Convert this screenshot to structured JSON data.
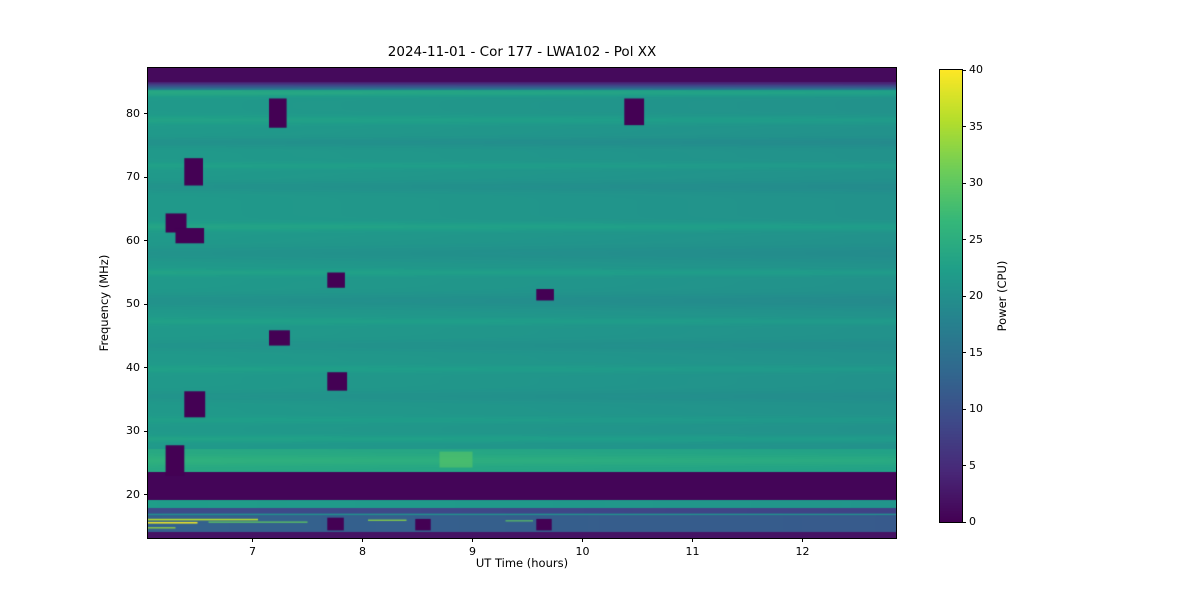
{
  "figure": {
    "background_color": "#ffffff",
    "text_color": "#000000"
  },
  "chart_data": {
    "type": "heatmap",
    "title": "2024-11-01 - Cor 177 - LWA102 - Pol XX",
    "xlabel": "UT Time (hours)",
    "ylabel": "Frequency (MHz)",
    "x_range": [
      6.05,
      12.85
    ],
    "y_range": [
      13.2,
      87.2
    ],
    "x_ticks": [
      7,
      8,
      9,
      10,
      11,
      12
    ],
    "y_ticks": [
      20,
      30,
      40,
      50,
      60,
      70,
      80
    ],
    "grid": false,
    "colorbar": {
      "label": "Power (CPU)",
      "min": 0,
      "max": 40,
      "ticks": [
        0,
        5,
        10,
        15,
        20,
        25,
        30,
        35,
        40
      ],
      "colormap": "viridis"
    },
    "x_gradient": -1.2,
    "bands": [
      {
        "y0": 85.0,
        "y1": 87.2,
        "power": 1
      },
      {
        "y0": 83.8,
        "y1": 85.0,
        "power": [
          16,
          3
        ]
      },
      {
        "y0": 27.2,
        "y1": 83.8,
        "power": 21.5
      },
      {
        "y0": 23.6,
        "y1": 27.2,
        "power": 24
      },
      {
        "y0": 19.2,
        "y1": 23.6,
        "power": 0.5
      },
      {
        "y0": 17.9,
        "y1": 19.2,
        "power": 22
      },
      {
        "y0": 17.2,
        "y1": 17.9,
        "power": 9
      },
      {
        "y0": 14.2,
        "y1": 17.2,
        "power": 12.5
      },
      {
        "y0": 13.2,
        "y1": 14.2,
        "power": 2
      }
    ],
    "stripes": [
      {
        "y": 83.3,
        "amp": 2.5,
        "sigma": 0.4
      },
      {
        "y": 79.0,
        "amp": 1.5,
        "sigma": 0.5
      },
      {
        "y": 75.5,
        "amp": -1.2,
        "sigma": 0.5
      },
      {
        "y": 71.8,
        "amp": 1.2,
        "sigma": 0.4
      },
      {
        "y": 68.5,
        "amp": -1.0,
        "sigma": 0.6
      },
      {
        "y": 62.2,
        "amp": 1.8,
        "sigma": 0.5
      },
      {
        "y": 58.0,
        "amp": -1.0,
        "sigma": 0.8
      },
      {
        "y": 55.0,
        "amp": 1.5,
        "sigma": 0.4
      },
      {
        "y": 50.5,
        "amp": -1.2,
        "sigma": 0.8
      },
      {
        "y": 47.3,
        "amp": 1.3,
        "sigma": 0.4
      },
      {
        "y": 43.5,
        "amp": -0.8,
        "sigma": 0.6
      },
      {
        "y": 39.8,
        "amp": 1.2,
        "sigma": 0.4
      },
      {
        "y": 35.5,
        "amp": -0.8,
        "sigma": 0.6
      },
      {
        "y": 31.8,
        "amp": 1.0,
        "sigma": 0.4
      },
      {
        "y": 28.8,
        "amp": 1.5,
        "sigma": 0.4
      },
      {
        "y": 25.4,
        "amp": 1.5,
        "sigma": 0.6
      }
    ],
    "flagged_blocks": [
      [
        7.15,
        7.31,
        77.8,
        82.4
      ],
      [
        10.38,
        10.56,
        78.2,
        82.4
      ],
      [
        6.38,
        6.55,
        68.7,
        73.0
      ],
      [
        6.21,
        6.4,
        61.3,
        64.3
      ],
      [
        6.3,
        6.56,
        59.6,
        62.0
      ],
      [
        7.68,
        7.84,
        52.6,
        55.0
      ],
      [
        9.58,
        9.74,
        50.6,
        52.4
      ],
      [
        7.15,
        7.34,
        43.5,
        45.9
      ],
      [
        7.68,
        7.86,
        36.4,
        39.3
      ],
      [
        6.38,
        6.57,
        32.2,
        36.3
      ],
      [
        6.21,
        6.38,
        23.0,
        27.8
      ],
      [
        7.68,
        7.83,
        14.4,
        16.4
      ],
      [
        8.48,
        8.62,
        14.4,
        16.2
      ],
      [
        9.58,
        9.72,
        14.4,
        16.2
      ]
    ],
    "flagged_power": 0,
    "streaks": [
      {
        "x0": 6.05,
        "x1": 7.05,
        "y": 16.1,
        "h": 0.25,
        "power": 36
      },
      {
        "x0": 6.05,
        "x1": 6.5,
        "y": 15.6,
        "h": 0.25,
        "power": 39
      },
      {
        "x0": 6.6,
        "x1": 7.5,
        "y": 15.7,
        "h": 0.2,
        "power": 30
      },
      {
        "x0": 8.05,
        "x1": 8.4,
        "y": 16.0,
        "h": 0.2,
        "power": 33
      },
      {
        "x0": 9.3,
        "x1": 9.55,
        "y": 15.9,
        "h": 0.18,
        "power": 30
      },
      {
        "x0": 6.05,
        "x1": 6.3,
        "y": 14.8,
        "h": 0.2,
        "power": 34
      },
      {
        "x0": 6.05,
        "x1": 12.85,
        "y": 16.9,
        "h": 0.18,
        "power": 20
      }
    ],
    "bright_patch": {
      "x0": 8.7,
      "x1": 9.0,
      "y0": 24.3,
      "y1": 26.8,
      "power": 30
    }
  }
}
